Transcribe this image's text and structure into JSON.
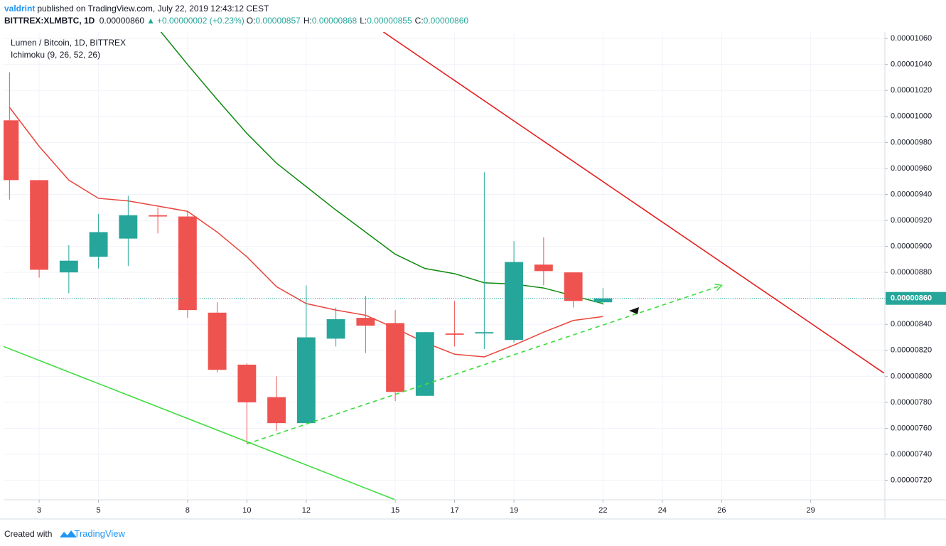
{
  "header": {
    "author": "valdrint",
    "published": "published on TradingView.com, July 22, 2019 12:43:12 CEST",
    "symbol": "BITTREX:XLMBTC, 1D",
    "last": "0.00000860",
    "change": "+0.00000002 (+0.23%)",
    "ohlc": [
      {
        "key": "O:",
        "value": "0.00000857"
      },
      {
        "key": "H:",
        "value": "0.00000868"
      },
      {
        "key": "L:",
        "value": "0.00000855"
      },
      {
        "key": "C:",
        "value": "0.00000860"
      }
    ]
  },
  "footer": {
    "text": "Created with",
    "brand": "TradingView"
  },
  "chart_data": {
    "type": "candlestick",
    "title": "Lumen / Bitcoin, 1D, BITTREX",
    "subtitle": "Ichimoku (9, 26, 52, 26)",
    "x": [
      2,
      3,
      4,
      5,
      6,
      7,
      8,
      9,
      10,
      11,
      12,
      13,
      14,
      15,
      16,
      17,
      18,
      19,
      20,
      21,
      22
    ],
    "open": [
      9.97e-06,
      9.51e-06,
      8.8e-06,
      8.92e-06,
      9.06e-06,
      9.24e-06,
      9.23e-06,
      8.49e-06,
      8.09e-06,
      7.84e-06,
      7.64e-06,
      8.29e-06,
      8.45e-06,
      8.41e-06,
      7.85e-06,
      8.33e-06,
      8.33e-06,
      8.28e-06,
      8.86e-06,
      8.8e-06,
      8.57e-06
    ],
    "high": [
      1.034e-05,
      9.51e-06,
      9.01e-06,
      9.25e-06,
      9.39e-06,
      9.3e-06,
      9.27e-06,
      8.57e-06,
      8.1e-06,
      8e-06,
      8.7e-06,
      8.53e-06,
      8.62e-06,
      8.51e-06,
      8.34e-06,
      8.58e-06,
      9.57e-06,
      9.04e-06,
      9.07e-06,
      8.8e-06,
      8.68e-06
    ],
    "low": [
      9.36e-06,
      8.76e-06,
      8.64e-06,
      8.83e-06,
      8.85e-06,
      9.1e-06,
      8.45e-06,
      8.03e-06,
      7.48e-06,
      7.58e-06,
      7.64e-06,
      8.23e-06,
      8.18e-06,
      7.81e-06,
      7.85e-06,
      8.23e-06,
      8.21e-06,
      8.26e-06,
      8.7e-06,
      8.53e-06,
      8.55e-06
    ],
    "close": [
      9.51e-06,
      8.82e-06,
      8.89e-06,
      9.11e-06,
      9.24e-06,
      9.23e-06,
      8.51e-06,
      8.05e-06,
      7.8e-06,
      7.64e-06,
      8.3e-06,
      8.44e-06,
      8.39e-06,
      7.88e-06,
      8.34e-06,
      8.32e-06,
      8.34e-06,
      8.88e-06,
      8.81e-06,
      8.58e-06,
      8.6e-06
    ],
    "up_color": "#26a69a",
    "down_color": "#ef5350",
    "lines": [
      {
        "color": "#e8453c",
        "values": [
          1.007e-05,
          9.77e-06,
          9.51e-06,
          9.37e-06,
          9.35e-06,
          9.31e-06,
          9.27e-06,
          9.11e-06,
          8.92e-06,
          8.69e-06,
          8.56e-06,
          8.51e-06,
          8.47e-06,
          8.37e-06,
          8.26e-06,
          8.17e-06,
          8.15e-06,
          8.24e-06,
          8.34e-06,
          8.43e-06,
          8.46e-06
        ]
      },
      {
        "color": "#0d8a0d",
        "values": [
          null,
          null,
          null,
          null,
          null,
          1.068e-05,
          1.04e-05,
          1.013e-05,
          9.87e-06,
          9.64e-06,
          9.46e-06,
          9.28e-06,
          9.11e-06,
          8.94e-06,
          8.83e-06,
          8.79e-06,
          8.72e-06,
          8.71e-06,
          8.68e-06,
          8.62e-06,
          8.56e-06
        ]
      }
    ],
    "trendlines": [
      {
        "color": "#e51e1e",
        "dashed": false,
        "x": [
          14.6,
          31.47
        ],
        "y": [
          1.065e-05,
          8.025e-06
        ]
      },
      {
        "color": "#3fdc3f",
        "dashed": false,
        "x": [
          1.8,
          15.0
        ],
        "y": [
          8.23e-06,
          7.05e-06
        ]
      },
      {
        "color": "#3fdc3f",
        "dashed": true,
        "x": [
          10,
          26
        ],
        "y": [
          7.48e-06,
          8.7e-06
        ]
      }
    ],
    "last_label": "0.00000860",
    "last_color": "#26a69a",
    "xlim": [
      1.8,
      31.5
    ],
    "xticks": [
      3,
      5,
      8,
      10,
      12,
      15,
      17,
      19,
      22,
      24,
      26,
      29
    ],
    "ylim": [
      7.05e-06,
      1.065e-05
    ],
    "yticks": [
      {
        "value": 1.06e-05,
        "label": "0.00001060"
      },
      {
        "value": 1.04e-05,
        "label": "0.00001040"
      },
      {
        "value": 1.02e-05,
        "label": "0.00001020"
      },
      {
        "value": 1e-05,
        "label": "0.00001000"
      },
      {
        "value": 9.8e-06,
        "label": "0.00000980"
      },
      {
        "value": 9.6e-06,
        "label": "0.00000960"
      },
      {
        "value": 9.4e-06,
        "label": "0.00000940"
      },
      {
        "value": 9.2e-06,
        "label": "0.00000920"
      },
      {
        "value": 9e-06,
        "label": "0.00000900"
      },
      {
        "value": 8.8e-06,
        "label": "0.00000880"
      },
      {
        "value": 8.6e-06,
        "label": "0.00000860"
      },
      {
        "value": 8.4e-06,
        "label": "0.00000840"
      },
      {
        "value": 8.2e-06,
        "label": "0.00000820"
      },
      {
        "value": 8e-06,
        "label": "0.00000800"
      },
      {
        "value": 7.8e-06,
        "label": "0.00000780"
      },
      {
        "value": 7.6e-06,
        "label": "0.00000760"
      },
      {
        "value": 7.4e-06,
        "label": "0.00000740"
      },
      {
        "value": 7.2e-06,
        "label": "0.00000720"
      }
    ],
    "grid": true
  }
}
